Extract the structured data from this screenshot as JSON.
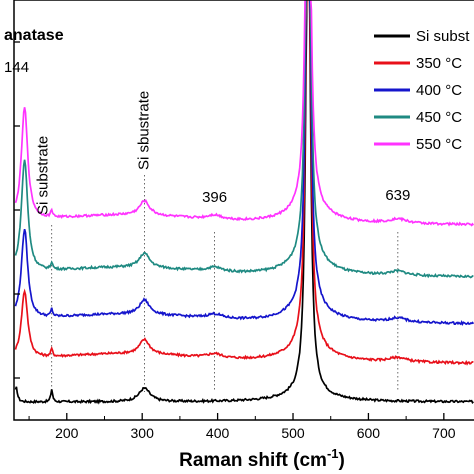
{
  "chart_data": {
    "type": "line",
    "xlabel": "Raman shift (cm",
    "xlabel_sup": "-1",
    "xlabel_close": ")",
    "ylabel": "",
    "xlim": [
      130,
      740
    ],
    "x_ticks": [
      200,
      300,
      400,
      500,
      600,
      700
    ],
    "x_tick_labels": [
      "200",
      "300",
      "400",
      "500",
      "600",
      "700"
    ],
    "y_ticks_relative": [
      0.1,
      0.3,
      0.5,
      0.7,
      0.9
    ],
    "grid": false,
    "legend_position": "top-right",
    "annotations": [
      {
        "text": "anatase",
        "bold": true
      },
      {
        "text": "144",
        "x": 144
      },
      {
        "text": "Si substrate",
        "x": 180,
        "rotated": true
      },
      {
        "text": "Si sbustrate",
        "x": 303,
        "rotated": true
      },
      {
        "text": "396",
        "x": 396
      },
      {
        "text": "639",
        "x": 639
      }
    ],
    "reference_lines_x": [
      180,
      303,
      396,
      639
    ],
    "series": [
      {
        "name": "Si subst",
        "color": "#000000",
        "offset": 0.0,
        "peaks_144": 0.08
      },
      {
        "name": "350 °C",
        "color": "#e8101a",
        "offset": 0.115,
        "peaks_144": 0.75
      },
      {
        "name": "400 °C",
        "color": "#1515cc",
        "offset": 0.225,
        "peaks_144": 1.0
      },
      {
        "name": "450 °C",
        "color": "#1f8a82",
        "offset": 0.355,
        "peaks_144": 1.25
      },
      {
        "name": "550 °C",
        "color": "#ff33ff",
        "offset": 0.5,
        "peaks_144": 1.25
      }
    ]
  }
}
